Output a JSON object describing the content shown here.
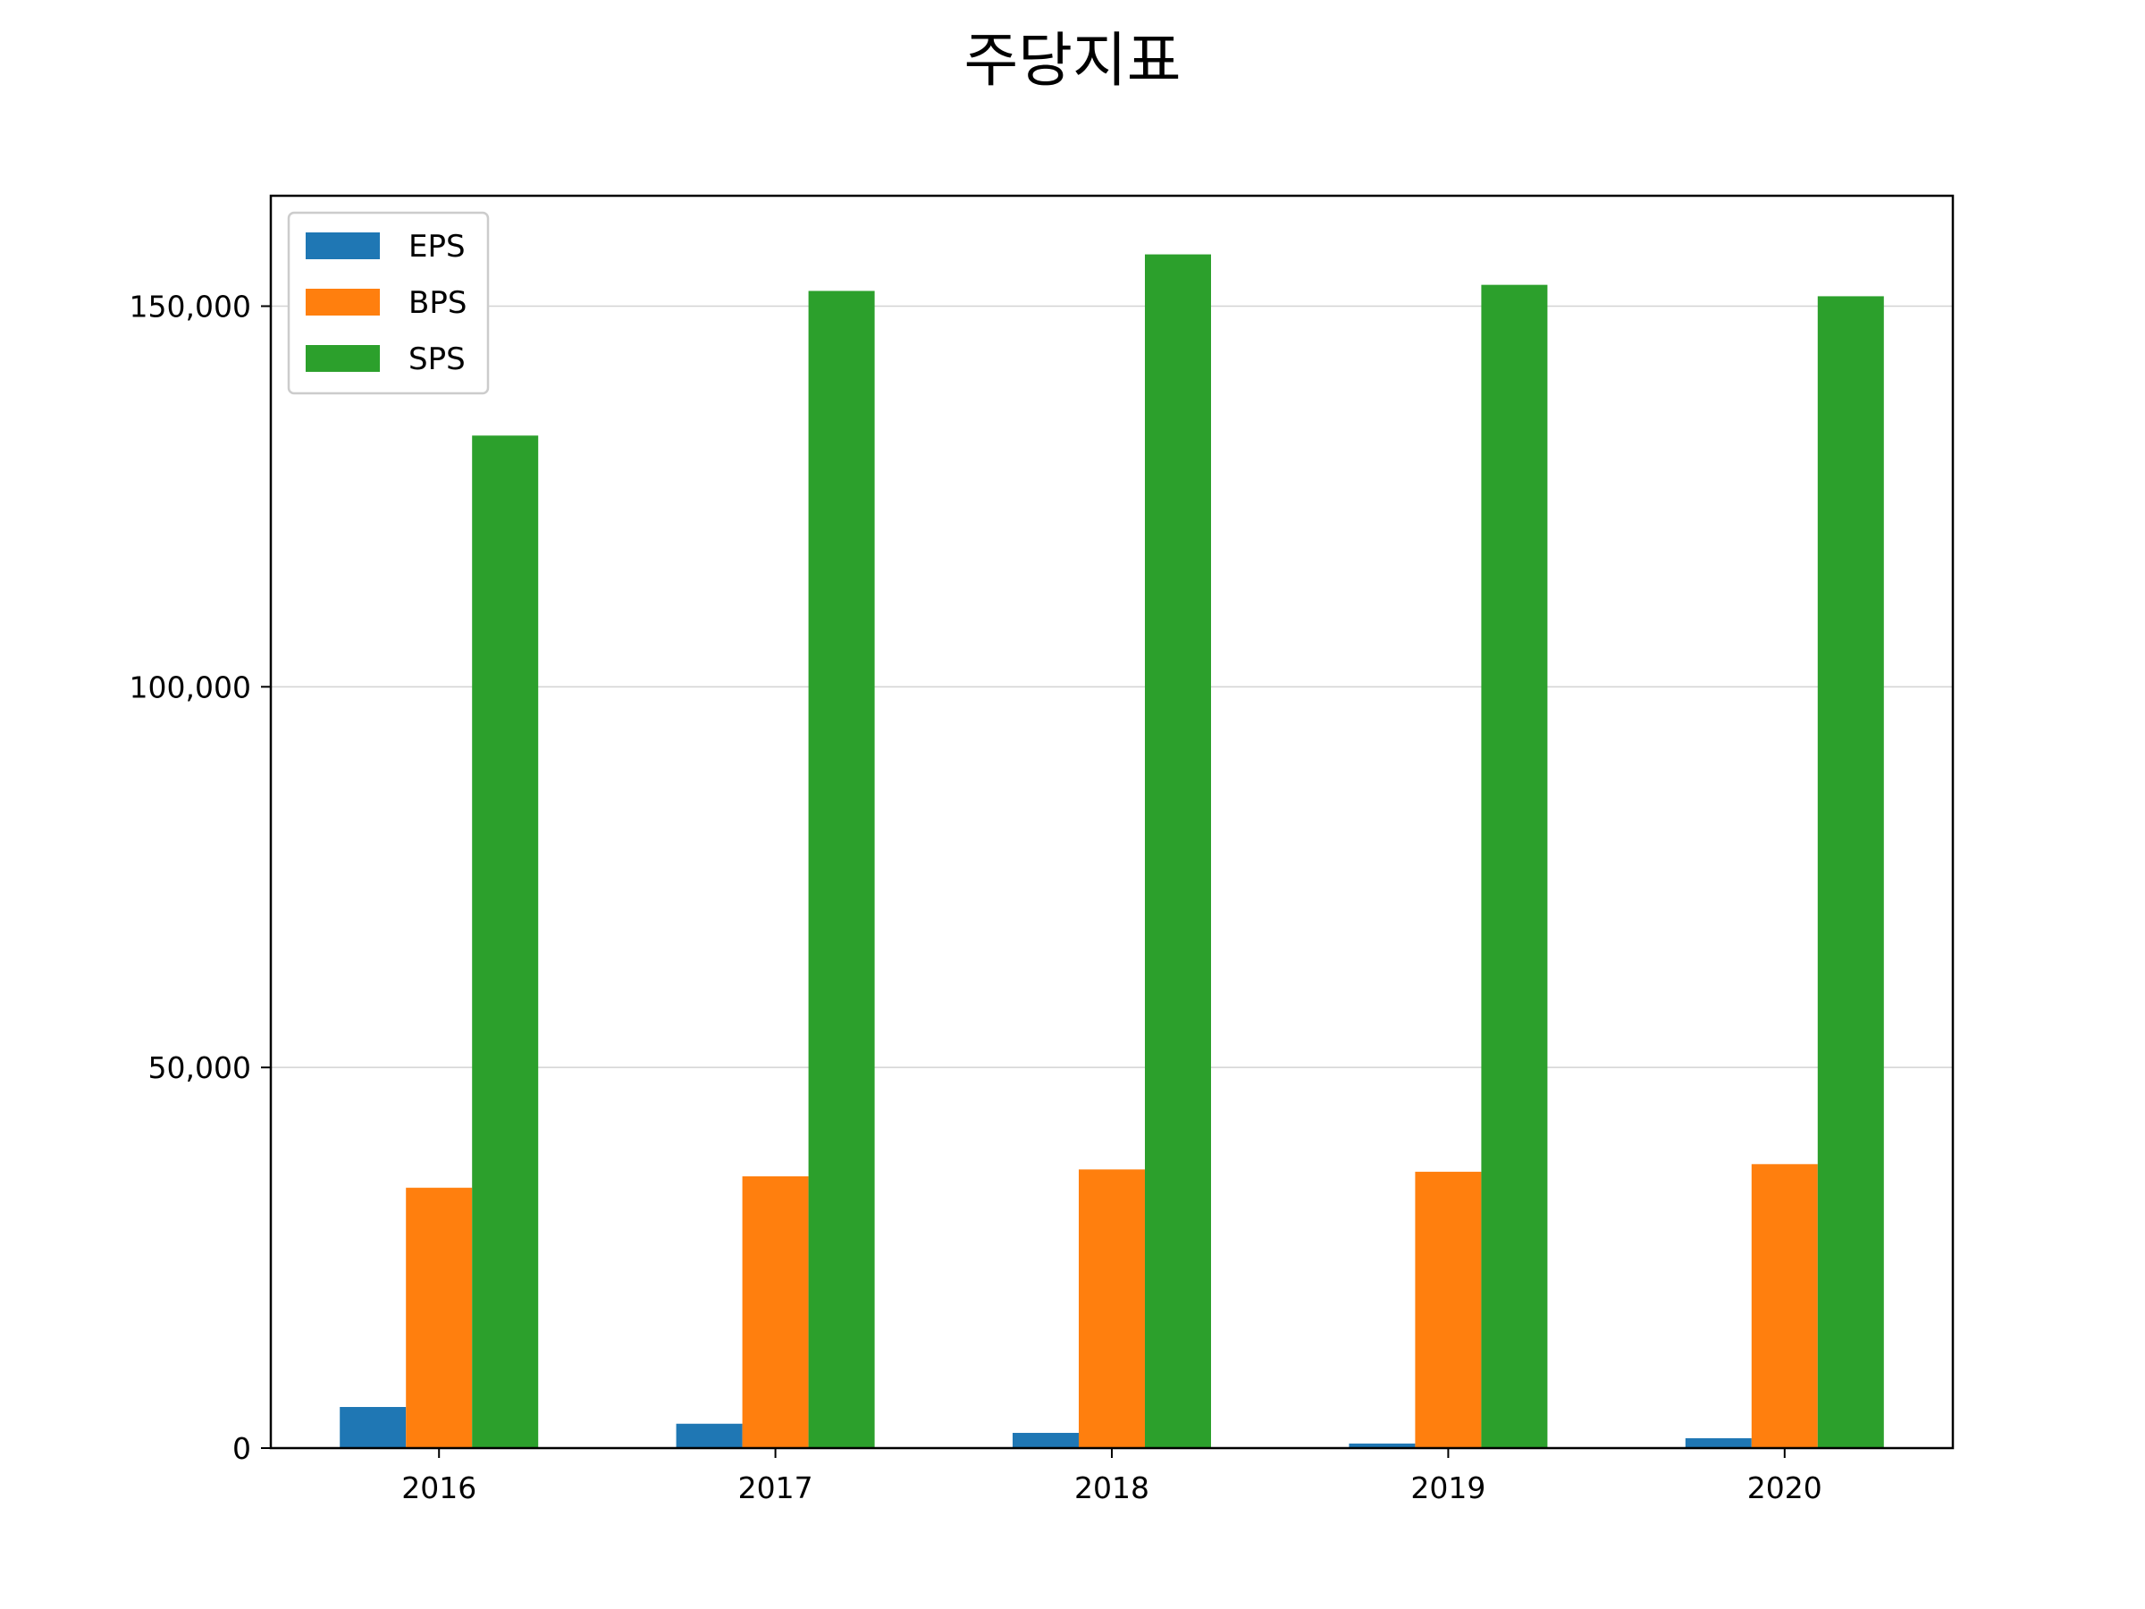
{
  "chart_data": {
    "type": "bar",
    "title": "주당지표",
    "xlabel": "",
    "ylabel": "",
    "categories": [
      "2016",
      "2017",
      "2018",
      "2019",
      "2020"
    ],
    "series": [
      {
        "name": "EPS",
        "color": "#1f77b4",
        "values": [
          5400,
          3200,
          2000,
          600,
          1300
        ]
      },
      {
        "name": "BPS",
        "color": "#ff7f0e",
        "values": [
          34200,
          35700,
          36600,
          36300,
          37300
        ]
      },
      {
        "name": "SPS",
        "color": "#2ca02c",
        "values": [
          133000,
          152000,
          156800,
          152800,
          151300
        ]
      }
    ],
    "ylim": [
      0,
      164500
    ],
    "yticks": [
      0,
      50000,
      100000,
      150000
    ],
    "ytick_labels": [
      "0",
      "50,000",
      "100,000",
      "150,000"
    ],
    "grid": "y",
    "legend": "upper-left"
  }
}
